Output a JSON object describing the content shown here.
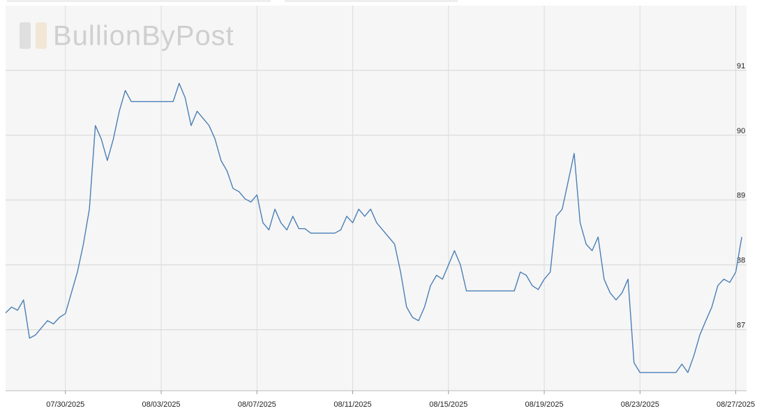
{
  "chart_data": {
    "type": "line",
    "watermark": "BullionByPost",
    "categories": [
      null,
      null,
      null,
      null,
      null,
      null,
      null,
      null,
      null,
      null,
      "07/30/2025",
      null,
      null,
      null,
      null,
      null,
      null,
      null,
      null,
      null,
      null,
      null,
      null,
      null,
      null,
      null,
      "08/03/2025",
      null,
      null,
      null,
      null,
      null,
      null,
      null,
      null,
      null,
      null,
      null,
      null,
      null,
      null,
      null,
      "08/07/2025",
      null,
      null,
      null,
      null,
      null,
      null,
      null,
      null,
      null,
      null,
      null,
      null,
      null,
      null,
      null,
      "08/11/2025",
      null,
      null,
      null,
      null,
      null,
      null,
      null,
      null,
      null,
      null,
      null,
      null,
      null,
      null,
      null,
      "08/15/2025",
      null,
      null,
      null,
      null,
      null,
      null,
      null,
      null,
      null,
      null,
      null,
      null,
      null,
      null,
      null,
      "08/19/2025",
      null,
      null,
      null,
      null,
      null,
      null,
      null,
      null,
      null,
      null,
      null,
      null,
      null,
      null,
      null,
      "08/23/2025",
      null,
      null,
      null,
      null,
      null,
      null,
      null,
      null,
      null,
      null,
      null,
      null,
      null,
      null,
      null,
      "08/27/2025",
      null
    ],
    "values": [
      87.26,
      87.35,
      87.3,
      87.46,
      86.87,
      86.92,
      87.03,
      87.14,
      87.09,
      87.19,
      87.25,
      87.57,
      87.89,
      88.32,
      88.86,
      90.15,
      89.94,
      89.61,
      89.94,
      90.37,
      90.69,
      90.52,
      90.52,
      90.52,
      90.52,
      90.52,
      90.52,
      90.52,
      90.52,
      90.8,
      90.58,
      90.15,
      90.37,
      90.26,
      90.15,
      89.94,
      89.61,
      89.45,
      89.18,
      89.13,
      89.02,
      88.97,
      89.08,
      88.65,
      88.54,
      88.86,
      88.65,
      88.54,
      88.75,
      88.56,
      88.56,
      88.49,
      88.49,
      88.49,
      88.49,
      88.49,
      88.54,
      88.75,
      88.65,
      88.86,
      88.75,
      88.86,
      88.65,
      88.54,
      88.43,
      88.32,
      87.89,
      87.35,
      87.19,
      87.14,
      87.35,
      87.68,
      87.84,
      87.78,
      88.0,
      88.22,
      88.0,
      87.6,
      87.6,
      87.6,
      87.6,
      87.6,
      87.6,
      87.6,
      87.6,
      87.6,
      87.89,
      87.84,
      87.68,
      87.62,
      87.78,
      87.89,
      88.75,
      88.86,
      89.29,
      89.72,
      88.65,
      88.32,
      88.22,
      88.43,
      87.78,
      87.57,
      87.46,
      87.57,
      87.78,
      86.49,
      86.34,
      86.34,
      86.34,
      86.34,
      86.34,
      86.34,
      86.34,
      86.47,
      86.34,
      86.6,
      86.92,
      87.14,
      87.35,
      87.68,
      87.78,
      87.73,
      87.89,
      88.43
    ],
    "color": "#4a7fb5",
    "ylim": [
      86.06,
      92.0
    ],
    "yticks": [
      87,
      88,
      89,
      90,
      91
    ],
    "grid": true
  }
}
